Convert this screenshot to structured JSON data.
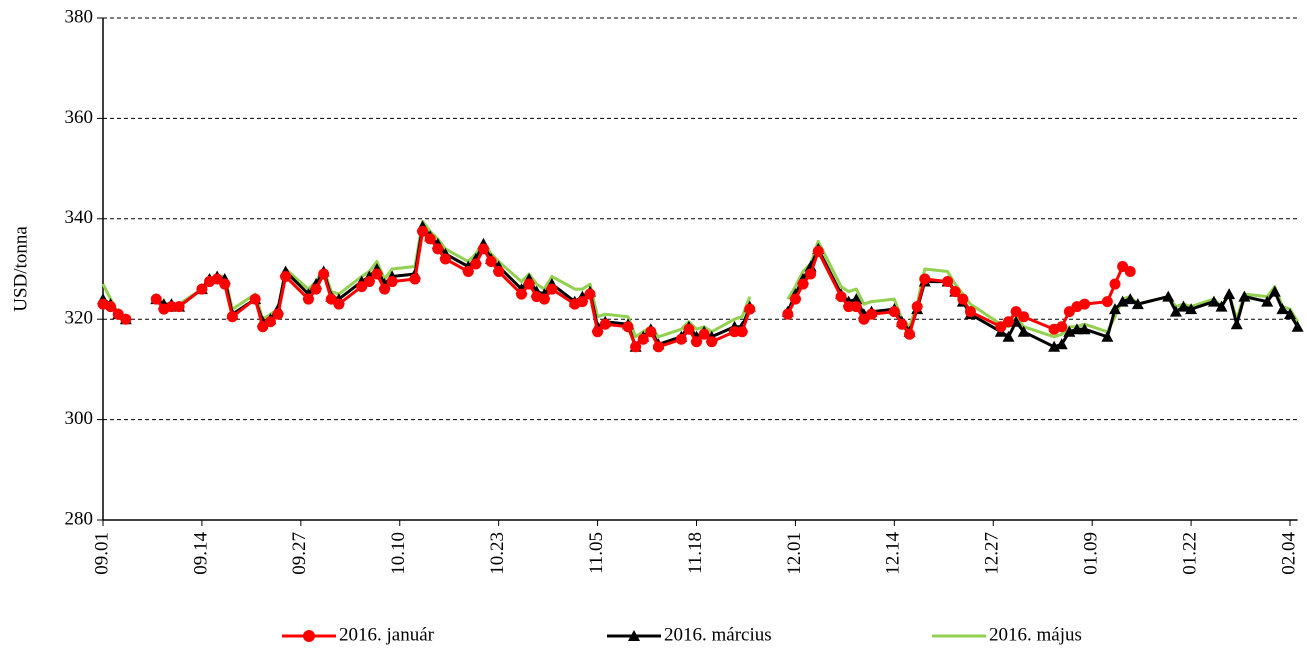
{
  "chart_data": {
    "type": "line",
    "y_label": "USD/tonna",
    "x": [
      "09.01",
      "09.02",
      "09.03",
      "09.04",
      "09.07",
      "09.08",
      "09.09",
      "09.10",
      "09.11",
      "09.14",
      "09.15",
      "09.16",
      "09.17",
      "09.18",
      "09.21",
      "09.22",
      "09.23",
      "09.24",
      "09.25",
      "09.28",
      "09.29",
      "09.30",
      "10.01",
      "10.02",
      "10.05",
      "10.06",
      "10.07",
      "10.08",
      "10.09",
      "10.12",
      "10.13",
      "10.14",
      "10.15",
      "10.16",
      "10.19",
      "10.20",
      "10.21",
      "10.22",
      "10.23",
      "10.26",
      "10.27",
      "10.28",
      "10.29",
      "10.30",
      "11.02",
      "11.03",
      "11.04",
      "11.05",
      "11.06",
      "11.09",
      "11.10",
      "11.11",
      "11.12",
      "11.13",
      "11.16",
      "11.17",
      "11.18",
      "11.19",
      "11.20",
      "11.23",
      "11.24",
      "11.25",
      "11.27",
      "11.30",
      "12.01",
      "12.02",
      "12.03",
      "12.04",
      "12.07",
      "12.08",
      "12.09",
      "12.10",
      "12.11",
      "12.14",
      "12.15",
      "12.16",
      "12.17",
      "12.18",
      "12.21",
      "12.22",
      "12.23",
      "12.24",
      "12.28",
      "12.29",
      "12.30",
      "12.31",
      "01.04",
      "01.05",
      "01.06",
      "01.07",
      "01.08",
      "01.11",
      "01.12",
      "01.13",
      "01.14",
      "01.15",
      "01.19",
      "01.20",
      "01.21",
      "01.22",
      "01.25",
      "01.26",
      "01.27",
      "01.28",
      "01.29",
      "02.01",
      "02.02",
      "02.03",
      "02.04",
      "02.05"
    ],
    "series": [
      {
        "name": "2016. január",
        "color": "#ff0000",
        "marker": "circle",
        "values": [
          323,
          322.5,
          321,
          320,
          null,
          324,
          322,
          322.5,
          322.5,
          326,
          327.5,
          328,
          327,
          320.5,
          324,
          318.5,
          319.5,
          321,
          328.5,
          324,
          326,
          329,
          324,
          323,
          326.5,
          327.5,
          329,
          326,
          327.5,
          328,
          337.5,
          336,
          334,
          332,
          329.5,
          331,
          334,
          331.5,
          329.5,
          325,
          327,
          324.5,
          324,
          326,
          323,
          323.5,
          325,
          317.5,
          319,
          318.5,
          314.5,
          316,
          317.5,
          314.5,
          316,
          318,
          315.5,
          317,
          315.5,
          317.5,
          317.5,
          322,
          null,
          321,
          324,
          327,
          329,
          333.5,
          324.5,
          322.5,
          322.5,
          320,
          321,
          321.5,
          319,
          317,
          322.5,
          328,
          327.5,
          325.5,
          324,
          321.5,
          318.5,
          319.5,
          321.5,
          320.5,
          318,
          318.5,
          321.5,
          322.5,
          323,
          323.5,
          327,
          330.5,
          329.5,
          null,
          null,
          null,
          null,
          null,
          null,
          null,
          null,
          null,
          null,
          null,
          null,
          null,
          null,
          null
        ]
      },
      {
        "name": "2016. március",
        "color": "#000000",
        "marker": "triangle",
        "values": [
          324,
          323,
          321,
          320,
          null,
          324,
          323,
          323,
          322.5,
          326,
          328,
          328.5,
          328,
          321,
          324,
          319.5,
          320,
          322,
          329.5,
          325,
          327,
          329.5,
          324.5,
          324,
          327.5,
          328.5,
          330,
          327,
          328.5,
          329,
          338.5,
          336.5,
          335,
          333,
          330.5,
          332,
          335,
          332,
          330.5,
          326,
          328,
          325.5,
          325,
          327,
          323.5,
          324.5,
          325.5,
          318.5,
          319.5,
          319,
          314.5,
          316.5,
          318,
          315,
          316.5,
          318.5,
          316.5,
          317.5,
          316.5,
          318.5,
          318.5,
          322.5,
          null,
          321.5,
          325,
          328,
          330.5,
          334,
          325,
          323.5,
          324,
          321,
          321.5,
          322,
          319.5,
          317.5,
          322,
          327.5,
          327.5,
          325.5,
          323.5,
          321,
          317.5,
          316.5,
          319.5,
          317.5,
          314.5,
          315,
          317.5,
          318,
          318,
          316.5,
          322,
          323.5,
          324,
          323,
          324.5,
          321.5,
          322.5,
          322,
          323.5,
          322.5,
          325,
          319,
          324.5,
          323.5,
          325.5,
          322,
          321,
          318.5
        ]
      },
      {
        "name": "2016. május",
        "color": "#92d050",
        "marker": "none",
        "values": [
          327,
          324,
          321,
          320,
          null,
          324.5,
          323,
          323,
          323,
          326,
          328,
          328.5,
          328.5,
          322,
          325,
          320,
          321,
          322,
          330,
          326,
          327.5,
          330,
          325.5,
          325,
          328.5,
          329.5,
          331.5,
          328,
          330,
          330.5,
          339.5,
          337.5,
          336,
          334,
          331.5,
          333,
          335.5,
          333,
          331.5,
          327.5,
          329,
          327,
          326,
          328.5,
          326,
          326,
          327,
          320.5,
          321,
          320.5,
          316.5,
          317.5,
          318.5,
          316.5,
          318,
          319.5,
          318,
          318.5,
          317.5,
          320,
          320.5,
          324.5,
          null,
          324,
          326.5,
          329.5,
          331,
          335.5,
          326.5,
          325.5,
          326,
          323,
          323.5,
          324,
          320,
          318.5,
          323,
          330,
          329.5,
          327,
          325,
          323,
          319,
          318.5,
          320.5,
          318.5,
          316.5,
          317,
          318.5,
          318.5,
          319,
          317.5,
          320.5,
          324,
          324.5,
          323,
          324.5,
          322.5,
          323,
          322.5,
          324,
          322.5,
          325,
          320,
          325,
          324.5,
          326.5,
          322.5,
          322,
          319.5
        ]
      }
    ],
    "xlim": [
      "09.01",
      "02.05"
    ],
    "xticks": [
      "09.01",
      "09.14",
      "09.27",
      "10.10",
      "10.23",
      "11.05",
      "11.18",
      "12.01",
      "12.14",
      "12.27",
      "01.09",
      "01.22",
      "02.04"
    ],
    "ylim": [
      280,
      380
    ],
    "yticks": [
      280,
      300,
      320,
      340,
      360,
      380
    ],
    "grid": true,
    "legend": "bottom"
  }
}
